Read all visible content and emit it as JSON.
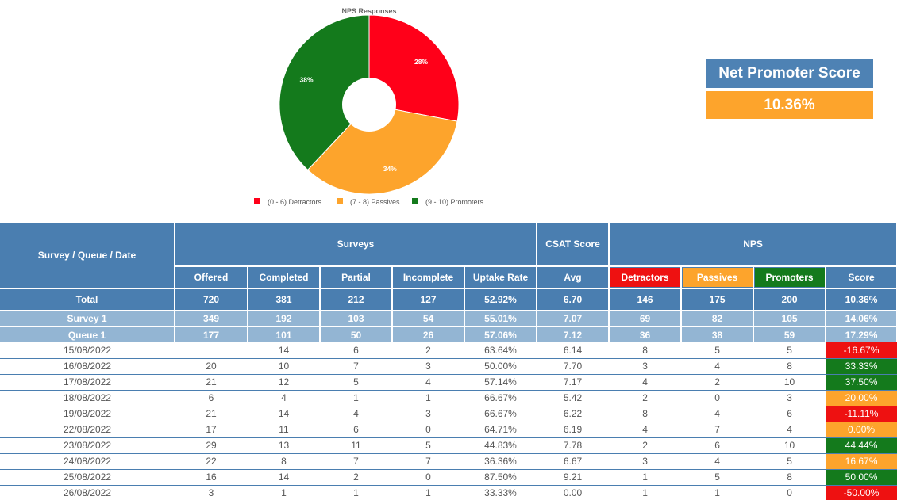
{
  "chart_data": {
    "type": "pie",
    "title": "NPS Responses",
    "donut": true,
    "categories": [
      "(0 - 6) Detractors",
      "(7 - 8) Passives",
      "(9 - 10) Promoters"
    ],
    "values": [
      28,
      34,
      38
    ],
    "value_labels": [
      "28%",
      "34%",
      "38%"
    ],
    "colors": [
      "#ff0019",
      "#fda42c",
      "#147a1c"
    ],
    "legend_position": "bottom"
  },
  "nps_box": {
    "title": "Net Promoter Score",
    "value": "10.36%",
    "title_color": "#4e82b4",
    "value_color": "#fda42c"
  },
  "table": {
    "header": {
      "col_group": "Survey / Queue / Date",
      "surveys": "Surveys",
      "csat": "CSAT Score",
      "nps": "NPS",
      "offered": "Offered",
      "completed": "Completed",
      "partial": "Partial",
      "incomplete": "Incomplete",
      "uptake": "Uptake Rate",
      "avg": "Avg",
      "detractors": "Detractors",
      "passives": "Passives",
      "promoters": "Promoters",
      "score": "Score"
    },
    "total": [
      "Total",
      "720",
      "381",
      "212",
      "127",
      "52.92%",
      "6.70",
      "146",
      "175",
      "200",
      "10.36%"
    ],
    "survey": [
      "Survey 1",
      "349",
      "192",
      "103",
      "54",
      "55.01%",
      "7.07",
      "69",
      "82",
      "105",
      "14.06%"
    ],
    "queue": [
      "Queue 1",
      "177",
      "101",
      "50",
      "26",
      "57.06%",
      "7.12",
      "36",
      "38",
      "59",
      "17.29%"
    ],
    "rows": [
      {
        "date": "15/08/2022",
        "offered": "",
        "completed": "14",
        "partial": "6",
        "incomplete": "2",
        "uptake": "63.64%",
        "avg": "6.14",
        "detractors": "8",
        "passives": "5",
        "promoters": "5",
        "score": "-16.67%",
        "level": "neg"
      },
      {
        "date": "16/08/2022",
        "offered": "20",
        "completed": "10",
        "partial": "7",
        "incomplete": "3",
        "uptake": "50.00%",
        "avg": "7.70",
        "detractors": "3",
        "passives": "4",
        "promoters": "8",
        "score": "33.33%",
        "level": "high"
      },
      {
        "date": "17/08/2022",
        "offered": "21",
        "completed": "12",
        "partial": "5",
        "incomplete": "4",
        "uptake": "57.14%",
        "avg": "7.17",
        "detractors": "4",
        "passives": "2",
        "promoters": "10",
        "score": "37.50%",
        "level": "high"
      },
      {
        "date": "18/08/2022",
        "offered": "6",
        "completed": "4",
        "partial": "1",
        "incomplete": "1",
        "uptake": "66.67%",
        "avg": "5.42",
        "detractors": "2",
        "passives": "0",
        "promoters": "3",
        "score": "20.00%",
        "level": "mid"
      },
      {
        "date": "19/08/2022",
        "offered": "21",
        "completed": "14",
        "partial": "4",
        "incomplete": "3",
        "uptake": "66.67%",
        "avg": "6.22",
        "detractors": "8",
        "passives": "4",
        "promoters": "6",
        "score": "-11.11%",
        "level": "neg"
      },
      {
        "date": "22/08/2022",
        "offered": "17",
        "completed": "11",
        "partial": "6",
        "incomplete": "0",
        "uptake": "64.71%",
        "avg": "6.19",
        "detractors": "4",
        "passives": "7",
        "promoters": "4",
        "score": "0.00%",
        "level": "mid"
      },
      {
        "date": "23/08/2022",
        "offered": "29",
        "completed": "13",
        "partial": "11",
        "incomplete": "5",
        "uptake": "44.83%",
        "avg": "7.78",
        "detractors": "2",
        "passives": "6",
        "promoters": "10",
        "score": "44.44%",
        "level": "high"
      },
      {
        "date": "24/08/2022",
        "offered": "22",
        "completed": "8",
        "partial": "7",
        "incomplete": "7",
        "uptake": "36.36%",
        "avg": "6.67",
        "detractors": "3",
        "passives": "4",
        "promoters": "5",
        "score": "16.67%",
        "level": "mid"
      },
      {
        "date": "25/08/2022",
        "offered": "16",
        "completed": "14",
        "partial": "2",
        "incomplete": "0",
        "uptake": "87.50%",
        "avg": "9.21",
        "detractors": "1",
        "passives": "5",
        "promoters": "8",
        "score": "50.00%",
        "level": "high"
      },
      {
        "date": "26/08/2022",
        "offered": "3",
        "completed": "1",
        "partial": "1",
        "incomplete": "1",
        "uptake": "33.33%",
        "avg": "0.00",
        "detractors": "1",
        "passives": "1",
        "promoters": "0",
        "score": "-50.00%",
        "level": "neg"
      }
    ]
  }
}
